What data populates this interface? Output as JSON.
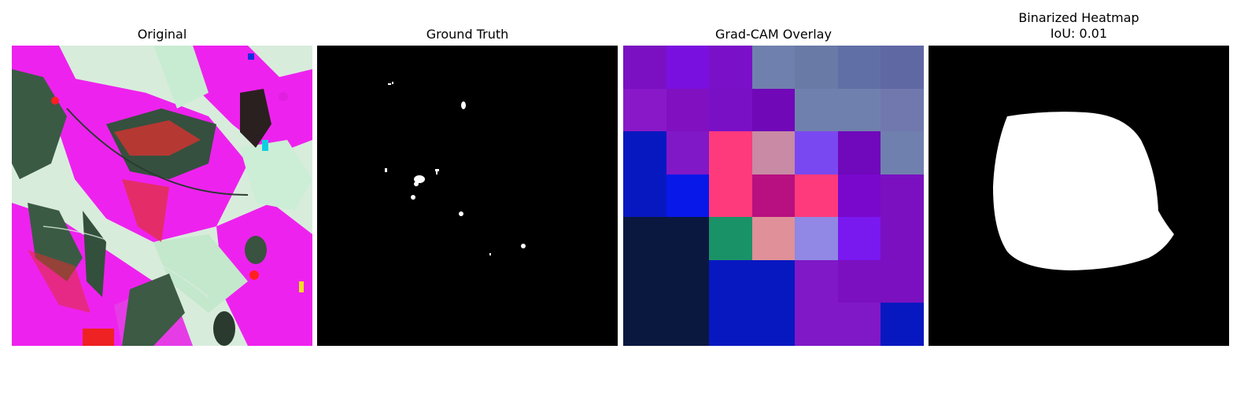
{
  "panels": [
    {
      "title": "Original"
    },
    {
      "title": "Ground Truth"
    },
    {
      "title": "Grad-CAM Overlay"
    },
    {
      "title": "Binarized Heatmap",
      "subtitle": "IoU: 0.01"
    }
  ],
  "gradcam_grid": [
    [
      "#7a10c2",
      "#7a10e0",
      "#7a10c8",
      "#7080ae",
      "#6a7aa6",
      "#6070a6",
      "#6068a4"
    ],
    [
      "#8818c8",
      "#8010c0",
      "#7a10c6",
      "#7008b8",
      "#7080ae",
      "#7080ae",
      "#7078ae"
    ],
    [
      "#0818c0",
      "#8018c8",
      "#ff3a7c",
      "#c88aa4",
      "#7a48f0",
      "#7008bc",
      "#7080ae"
    ],
    [
      "#0818c0",
      "#0818e8",
      "#ff3a7c",
      "#b81080",
      "#ff3a7c",
      "#7a08cc",
      "#7a10c0"
    ],
    [
      "#0a1840",
      "#0a1840",
      "#1a9268",
      "#e09098",
      "#9088e4",
      "#7a18f0",
      "#7a10c0"
    ],
    [
      "#0a1840",
      "#0a1840",
      "#0818c0",
      "#0818c0",
      "#8018c8",
      "#7a10c0",
      "#7a10c0"
    ],
    [
      "#0a1840",
      "#0a1840",
      "#0818c0",
      "#0818c0",
      "#8018c8",
      "#8018c8",
      "#0818c0"
    ]
  ]
}
